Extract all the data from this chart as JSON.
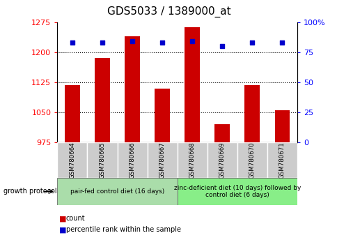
{
  "title": "GDS5033 / 1389000_at",
  "samples": [
    "GSM780664",
    "GSM780665",
    "GSM780666",
    "GSM780667",
    "GSM780668",
    "GSM780669",
    "GSM780670",
    "GSM780671"
  ],
  "count_values": [
    1118,
    1185,
    1240,
    1108,
    1263,
    1020,
    1118,
    1055
  ],
  "percentile_values": [
    83,
    83,
    84,
    83,
    84,
    80,
    83,
    83
  ],
  "ylim_left": [
    975,
    1275
  ],
  "ylim_right": [
    0,
    100
  ],
  "yticks_left": [
    975,
    1050,
    1125,
    1200,
    1275
  ],
  "yticks_right": [
    0,
    25,
    50,
    75,
    100
  ],
  "bar_color": "#cc0000",
  "dot_color": "#0000cc",
  "bar_bottom": 975,
  "group1_label": "pair-fed control diet (16 days)",
  "group2_label": "zinc-deficient diet (10 days) followed by\ncontrol diet (6 days)",
  "protocol_label": "growth protocol",
  "legend_count": "count",
  "legend_percentile": "percentile rank within the sample",
  "group1_indices": [
    0,
    1,
    2,
    3
  ],
  "group2_indices": [
    4,
    5,
    6,
    7
  ],
  "group1_bg": "#aaddaa",
  "group2_bg": "#88ee88",
  "sample_bg": "#cccccc",
  "title_fontsize": 11,
  "tick_fontsize": 8,
  "label_fontsize": 7.5,
  "grid_yticks": [
    1050,
    1125,
    1200
  ]
}
